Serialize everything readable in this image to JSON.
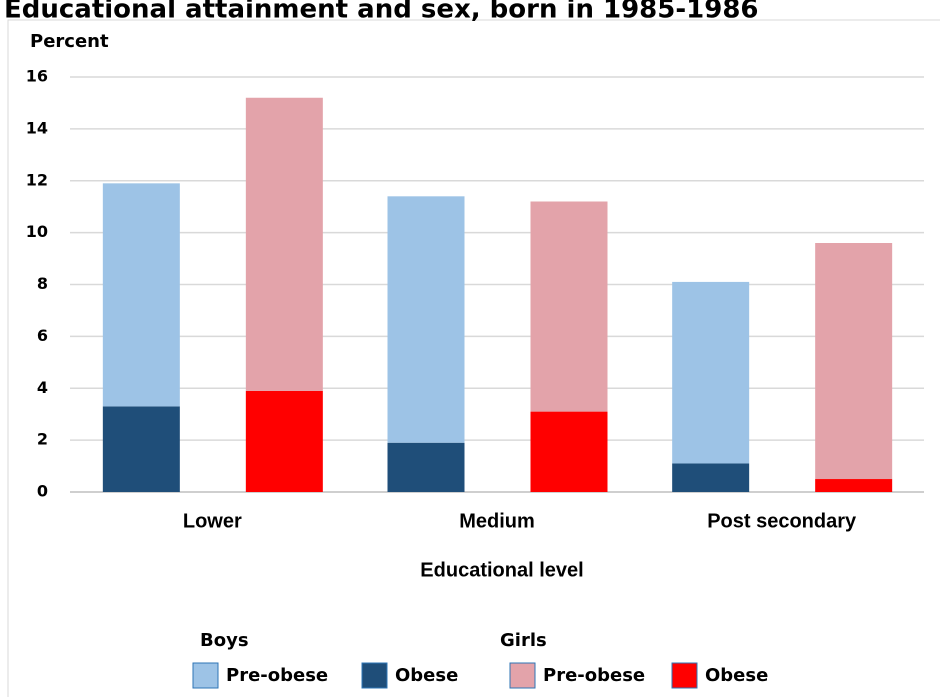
{
  "chart_data": {
    "type": "stacked_bar",
    "title": "Educational attainment and sex, born in 1985-1986",
    "y_axis_label": "Percent",
    "x_axis_label": "Educational level",
    "categories": [
      "Lower",
      "Medium",
      "Post secondary"
    ],
    "legend_groups": [
      "Boys",
      "Girls"
    ],
    "series": [
      {
        "name": "Obese",
        "group": 0,
        "color": "#1f4e79",
        "values": [
          3.3,
          1.9,
          1.1
        ]
      },
      {
        "name": "Pre-obese",
        "group": 0,
        "color": "#9dc3e6",
        "values": [
          8.6,
          9.5,
          7.0
        ]
      },
      {
        "name": "Obese",
        "group": 1,
        "color": "#ff0000",
        "values": [
          3.9,
          3.1,
          0.5
        ]
      },
      {
        "name": "Pre-obese",
        "group": 1,
        "color": "#e3a3aa",
        "values": [
          11.3,
          8.1,
          9.1
        ]
      }
    ],
    "ylim": [
      0,
      16
    ],
    "yticks": [
      0,
      2,
      4,
      6,
      8,
      10,
      12,
      14,
      16
    ],
    "grid": true
  }
}
